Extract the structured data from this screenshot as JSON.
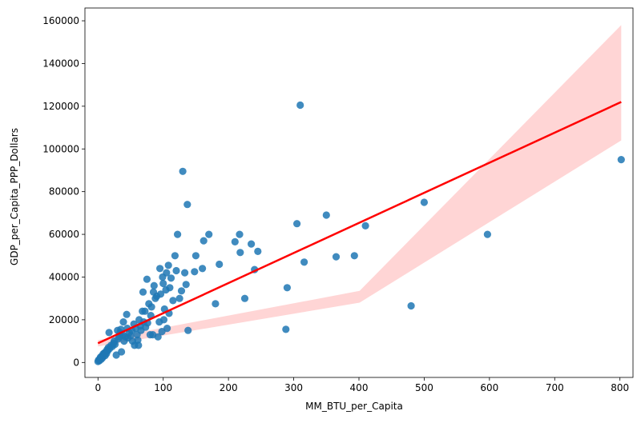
{
  "chart_data": {
    "type": "scatter",
    "title": "",
    "xlabel": "MM_BTU_per_Capita",
    "ylabel": "GDP_per_Capita_PPP_Dollars",
    "xlim": [
      -20,
      820
    ],
    "ylim": [
      -7000,
      166000
    ],
    "xticks": [
      0,
      100,
      200,
      300,
      400,
      500,
      600,
      700,
      800
    ],
    "yticks": [
      0,
      20000,
      40000,
      60000,
      80000,
      100000,
      120000,
      140000,
      160000
    ],
    "grid": false,
    "colors": {
      "point": "#1f77b4",
      "fit_line": "#ff0000",
      "confidence_band": "#ffb3b3"
    },
    "series": [
      {
        "name": "observations",
        "points": [
          [
            0,
            500
          ],
          [
            1,
            1200
          ],
          [
            2,
            800
          ],
          [
            3,
            1800
          ],
          [
            4,
            2500
          ],
          [
            5,
            1500
          ],
          [
            6,
            3000
          ],
          [
            7,
            2200
          ],
          [
            8,
            4000
          ],
          [
            9,
            3500
          ],
          [
            10,
            4500
          ],
          [
            11,
            3200
          ],
          [
            12,
            5000
          ],
          [
            13,
            4200
          ],
          [
            14,
            6000
          ],
          [
            15,
            5500
          ],
          [
            16,
            7000
          ],
          [
            17,
            14000
          ],
          [
            18,
            6500
          ],
          [
            20,
            8000
          ],
          [
            22,
            7500
          ],
          [
            24,
            9000
          ],
          [
            25,
            10000
          ],
          [
            26,
            8500
          ],
          [
            28,
            3500
          ],
          [
            30,
            15000
          ],
          [
            31,
            11000
          ],
          [
            33,
            12000
          ],
          [
            34,
            14000
          ],
          [
            35,
            15500
          ],
          [
            36,
            5000
          ],
          [
            38,
            13000
          ],
          [
            39,
            19000
          ],
          [
            40,
            10000
          ],
          [
            42,
            12000
          ],
          [
            44,
            22500
          ],
          [
            45,
            16000
          ],
          [
            46,
            11500
          ],
          [
            48,
            14000
          ],
          [
            50,
            12500
          ],
          [
            52,
            15000
          ],
          [
            53,
            10000
          ],
          [
            55,
            18000
          ],
          [
            56,
            8000
          ],
          [
            58,
            16000
          ],
          [
            60,
            13000
          ],
          [
            61,
            10500
          ],
          [
            62,
            8000
          ],
          [
            63,
            20000
          ],
          [
            65,
            17000
          ],
          [
            66,
            15000
          ],
          [
            68,
            24000
          ],
          [
            69,
            33000
          ],
          [
            70,
            19000
          ],
          [
            72,
            24000
          ],
          [
            73,
            16500
          ],
          [
            75,
            39000
          ],
          [
            76,
            18500
          ],
          [
            78,
            27500
          ],
          [
            80,
            13000
          ],
          [
            81,
            22000
          ],
          [
            82,
            26000
          ],
          [
            84,
            13000
          ],
          [
            85,
            33000
          ],
          [
            86,
            36000
          ],
          [
            88,
            30000
          ],
          [
            90,
            31000
          ],
          [
            92,
            12000
          ],
          [
            94,
            19000
          ],
          [
            95,
            44000
          ],
          [
            96,
            32000
          ],
          [
            98,
            14500
          ],
          [
            99,
            40000
          ],
          [
            100,
            37000
          ],
          [
            101,
            20000
          ],
          [
            102,
            25000
          ],
          [
            104,
            34000
          ],
          [
            105,
            42000
          ],
          [
            106,
            16000
          ],
          [
            108,
            45500
          ],
          [
            109,
            23000
          ],
          [
            110,
            35000
          ],
          [
            112,
            39500
          ],
          [
            115,
            29000
          ],
          [
            118,
            50000
          ],
          [
            120,
            43000
          ],
          [
            122,
            60000
          ],
          [
            125,
            30000
          ],
          [
            128,
            33500
          ],
          [
            130,
            89500
          ],
          [
            133,
            42000
          ],
          [
            135,
            36500
          ],
          [
            137,
            74000
          ],
          [
            138,
            15000
          ],
          [
            148,
            42500
          ],
          [
            150,
            50000
          ],
          [
            160,
            44000
          ],
          [
            162,
            57000
          ],
          [
            170,
            60000
          ],
          [
            180,
            27500
          ],
          [
            186,
            46000
          ],
          [
            210,
            56500
          ],
          [
            217,
            60000
          ],
          [
            218,
            51500
          ],
          [
            225,
            30000
          ],
          [
            235,
            55500
          ],
          [
            240,
            43500
          ],
          [
            245,
            52000
          ],
          [
            288,
            15500
          ],
          [
            290,
            35000
          ],
          [
            305,
            65000
          ],
          [
            310,
            120500
          ],
          [
            316,
            47000
          ],
          [
            350,
            69000
          ],
          [
            365,
            49500
          ],
          [
            393,
            50000
          ],
          [
            410,
            64000
          ],
          [
            480,
            26500
          ],
          [
            500,
            75000
          ],
          [
            597,
            60000
          ],
          [
            802,
            95000
          ]
        ]
      }
    ],
    "regression": {
      "x_range": [
        0,
        802
      ],
      "y_at_start": 9000,
      "y_at_end": 122000,
      "band_low_start": 7500,
      "band_high_start": 10500,
      "band_low_mid": 28000,
      "band_high_mid": 33500,
      "band_low_end": 104000,
      "band_high_end": 158000
    }
  }
}
